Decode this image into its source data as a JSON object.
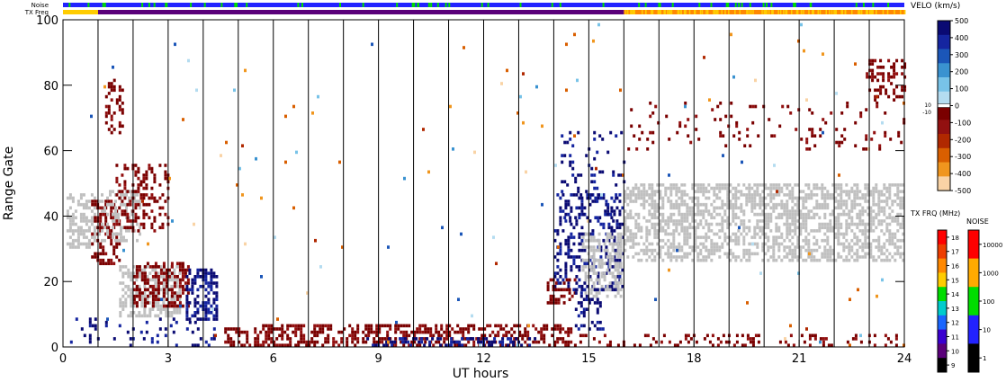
{
  "chart_data": [
    {
      "type": "heatmap",
      "title": "",
      "xlabel": "UT hours",
      "ylabel": "Range Gate",
      "xlim": [
        0,
        24
      ],
      "ylim": [
        0,
        100
      ],
      "x_ticks": [
        "0",
        "3",
        "6",
        "9",
        "12",
        "15",
        "18",
        "21",
        "24"
      ],
      "y_ticks": [
        "0",
        "20",
        "40",
        "60",
        "80",
        "100"
      ],
      "strip_labels": [
        "Noise",
        "TX Freq"
      ],
      "ground_scatter_color": "#c0c0c0",
      "clusters": [
        {
          "x": [
            0.1,
            0.9
          ],
          "y": [
            30,
            47
          ],
          "color": "ground",
          "density": 0.55
        },
        {
          "x": [
            0.8,
            1.6
          ],
          "y": [
            25,
            45
          ],
          "color": "neg_dark",
          "density": 0.45
        },
        {
          "x": [
            1.0,
            2.2
          ],
          "y": [
            32,
            48
          ],
          "color": "ground",
          "density": 0.35
        },
        {
          "x": [
            1.5,
            3.0
          ],
          "y": [
            35,
            56
          ],
          "color": "neg_dark",
          "density": 0.3
        },
        {
          "x": [
            1.2,
            1.7
          ],
          "y": [
            65,
            82
          ],
          "color": "neg_dark",
          "density": 0.3
        },
        {
          "x": [
            1.6,
            3.3
          ],
          "y": [
            9,
            25
          ],
          "color": "ground",
          "density": 0.55
        },
        {
          "x": [
            2.0,
            3.6
          ],
          "y": [
            12,
            26
          ],
          "color": "neg_dark",
          "density": 0.5
        },
        {
          "x": [
            3.5,
            4.4
          ],
          "y": [
            8,
            24
          ],
          "color": "pos_dark",
          "density": 0.55
        },
        {
          "x": [
            0.2,
            4.5
          ],
          "y": [
            0,
            9
          ],
          "color": "pos_dark",
          "density": 0.12
        },
        {
          "x": [
            4.6,
            14.5
          ],
          "y": [
            0,
            7
          ],
          "color": "neg_dark",
          "density": 0.45
        },
        {
          "x": [
            8.5,
            13.5
          ],
          "y": [
            0,
            3
          ],
          "color": "pos_dark",
          "density": 0.4
        },
        {
          "x": [
            14.0,
            16.0
          ],
          "y": [
            17,
            47
          ],
          "color": "pos_dark",
          "density": 0.3
        },
        {
          "x": [
            14.8,
            15.9
          ],
          "y": [
            15,
            35
          ],
          "color": "ground",
          "density": 0.45
        },
        {
          "x": [
            14.2,
            16.0
          ],
          "y": [
            38,
            66
          ],
          "color": "pos_dark",
          "density": 0.12
        },
        {
          "x": [
            13.8,
            14.6
          ],
          "y": [
            13,
            21
          ],
          "color": "neg_dark",
          "density": 0.5
        },
        {
          "x": [
            14.6,
            15.4
          ],
          "y": [
            5,
            18
          ],
          "color": "pos_dark",
          "density": 0.3
        },
        {
          "x": [
            16.0,
            24.0
          ],
          "y": [
            26,
            50
          ],
          "color": "ground",
          "density": 0.55
        },
        {
          "x": [
            16.1,
            24.0
          ],
          "y": [
            60,
            75
          ],
          "color": "neg_dark",
          "density": 0.07
        },
        {
          "x": [
            22.9,
            24.0
          ],
          "y": [
            75,
            88
          ],
          "color": "neg_dark",
          "density": 0.35
        },
        {
          "x": [
            14.5,
            24.0
          ],
          "y": [
            0,
            4
          ],
          "color": "neg_dark",
          "density": 0.18
        },
        {
          "x": [
            0.0,
            24.0
          ],
          "y": [
            0,
            100
          ],
          "color": "random",
          "density": 0.004
        }
      ],
      "vertical_lines_ut": [
        1,
        2,
        3,
        4,
        5,
        6,
        7,
        8,
        9,
        10,
        11,
        12,
        13,
        14,
        15,
        16,
        17,
        18,
        19,
        20,
        21,
        22,
        23
      ],
      "velocity_colorbar": {
        "label": "VELO (km/s)",
        "top_ticks": [
          "500",
          "400",
          "300",
          "200",
          "100",
          "0"
        ],
        "bottom_ticks": [
          "0",
          "-100",
          "-200",
          "-300",
          "-400",
          "-500"
        ],
        "side_labels": [
          "10",
          "-10"
        ],
        "positive_colors": [
          "#b4dcf0",
          "#78c3e8",
          "#3a92d0",
          "#1b56b8",
          "#1525a0",
          "#0a0a73"
        ],
        "negative_colors": [
          "#7a0000",
          "#921010",
          "#b02800",
          "#d95f00",
          "#f0961e",
          "#f9d3a5"
        ]
      },
      "frequency_colorbar": {
        "label": "TX FRQ (MHz)",
        "ticks": [
          "18",
          "17",
          "16",
          "15",
          "14",
          "13",
          "12",
          "11",
          "10",
          "9"
        ],
        "colors": [
          "#ff0000",
          "#ee3e00",
          "#ff8800",
          "#ffcc00",
          "#00dd00",
          "#00cccc",
          "#1a66ff",
          "#3a00d0",
          "#5a007a",
          "#000000"
        ]
      },
      "noise_colorbar": {
        "label": "NOISE",
        "ticks": [
          "10000",
          "1000",
          "100",
          "10",
          "1"
        ],
        "colors": [
          "#ff0000",
          "#ffaa00",
          "#00dd00",
          "#2222ff",
          "#000000"
        ]
      }
    }
  ]
}
